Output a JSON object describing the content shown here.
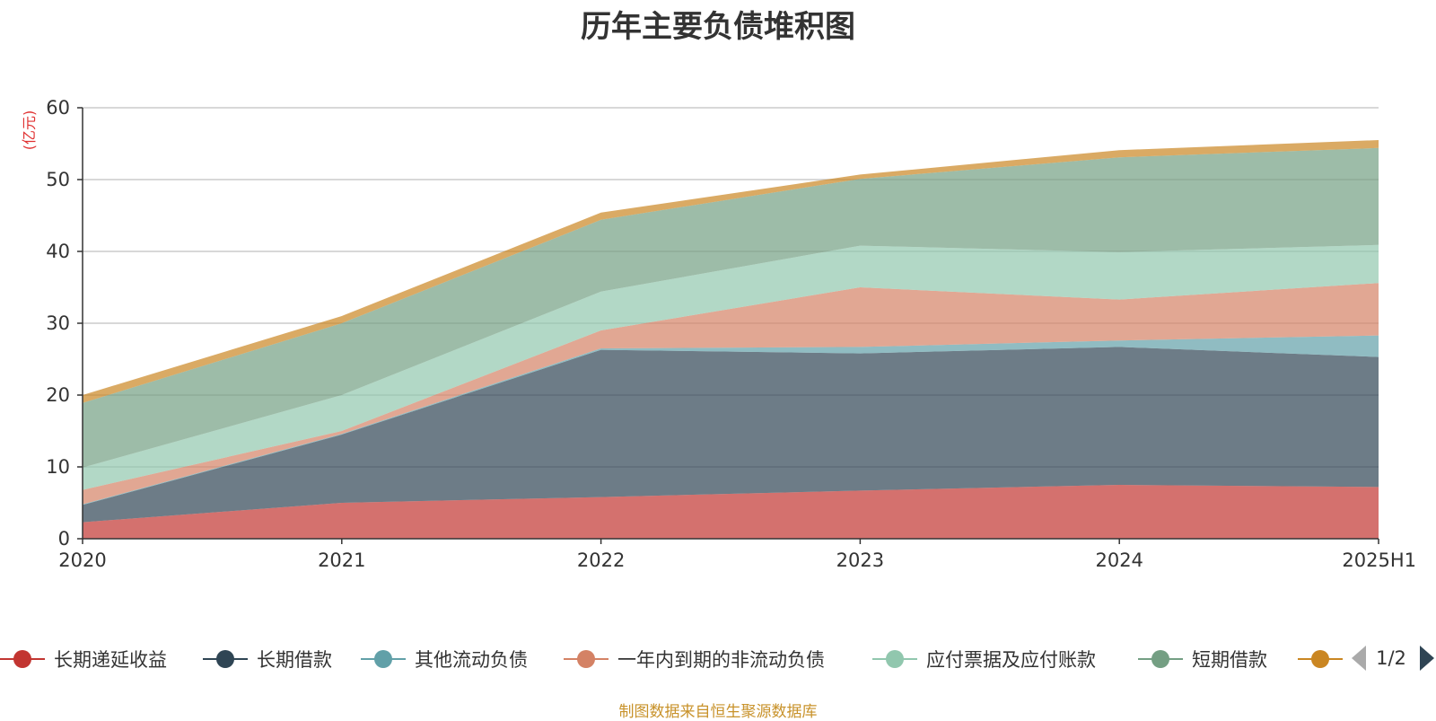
{
  "title": "历年主要负债堆积图",
  "unit": "(亿元)",
  "source": "制图数据来自恒生聚源数据库",
  "legend_page": "1/2",
  "chart_data": {
    "type": "area",
    "stacked": true,
    "categories": [
      "2020",
      "2021",
      "2022",
      "2023",
      "2024",
      "2025H1"
    ],
    "ylim": [
      0,
      60
    ],
    "yticks": [
      0,
      10,
      20,
      30,
      40,
      50,
      60
    ],
    "grid": true,
    "legend_position": "bottom",
    "series": [
      {
        "name": "长期递延收益",
        "color": "#c23531",
        "values": [
          2.3,
          5.0,
          5.8,
          6.7,
          7.5,
          7.2
        ]
      },
      {
        "name": "长期借款",
        "color": "#2f4554",
        "values": [
          2.4,
          9.5,
          20.5,
          19.1,
          19.2,
          18.1
        ]
      },
      {
        "name": "其他流动负债",
        "color": "#61a0a8",
        "values": [
          0.1,
          0.1,
          0.2,
          0.9,
          0.9,
          3.0
        ]
      },
      {
        "name": "一年内到期的非流动负债",
        "color": "#d48265",
        "values": [
          2.0,
          0.4,
          2.5,
          8.3,
          5.7,
          7.3
        ]
      },
      {
        "name": "应付票据及应付账款",
        "color": "#91c7ae",
        "values": [
          3.1,
          5.0,
          5.4,
          5.8,
          6.6,
          5.3
        ]
      },
      {
        "name": "短期借款",
        "color": "#749f83",
        "values": [
          9.0,
          10.0,
          10.0,
          9.3,
          13.2,
          13.5
        ]
      },
      {
        "name": "",
        "color": "#ca8622",
        "values": [
          1.1,
          1.0,
          1.0,
          0.6,
          1.0,
          1.1
        ]
      }
    ]
  }
}
